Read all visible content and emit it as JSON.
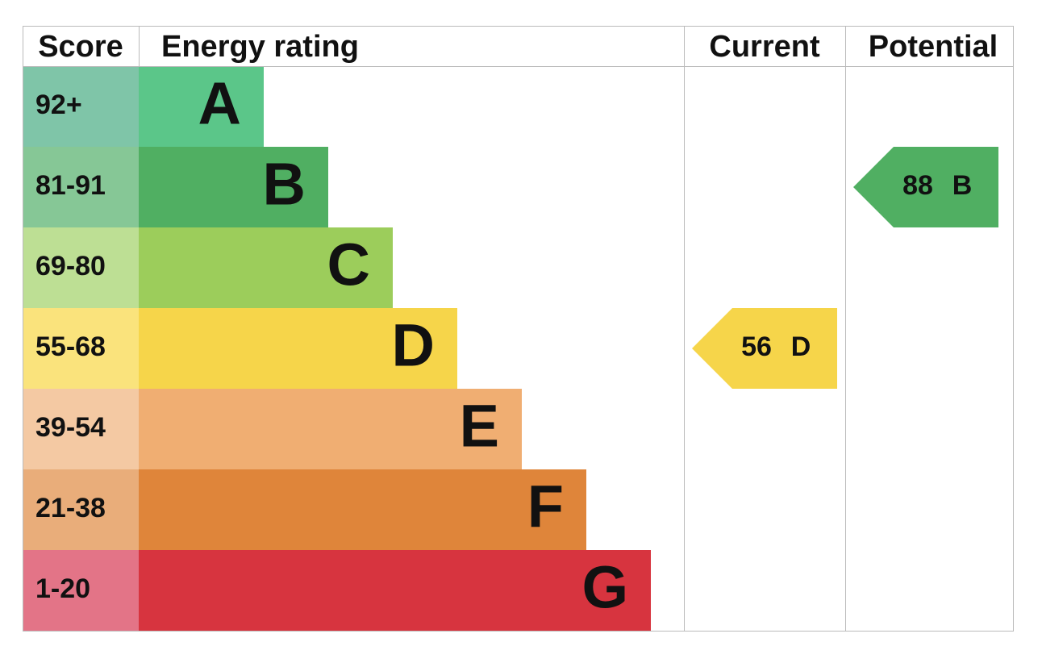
{
  "header": {
    "score": "Score",
    "energy_rating": "Energy rating",
    "current": "Current",
    "potential": "Potential"
  },
  "bands": [
    {
      "score": "92+",
      "letter": "A",
      "color": "#5bc689",
      "score_color": "#7fc5a8"
    },
    {
      "score": "81-91",
      "letter": "B",
      "color": "#50af62",
      "score_color": "#86c796"
    },
    {
      "score": "69-80",
      "letter": "C",
      "color": "#9ccd5b",
      "score_color": "#bddf94"
    },
    {
      "score": "55-68",
      "letter": "D",
      "color": "#f6d54a",
      "score_color": "#fae37c"
    },
    {
      "score": "39-54",
      "letter": "E",
      "color": "#f0ae72",
      "score_color": "#f4c9a3"
    },
    {
      "score": "21-38",
      "letter": "F",
      "color": "#df853a",
      "score_color": "#e9ad7a"
    },
    {
      "score": "1-20",
      "letter": "G",
      "color": "#d7343f",
      "score_color": "#e37487"
    }
  ],
  "current": {
    "value": "56",
    "letter": "D"
  },
  "potential": {
    "value": "88",
    "letter": "B"
  }
}
